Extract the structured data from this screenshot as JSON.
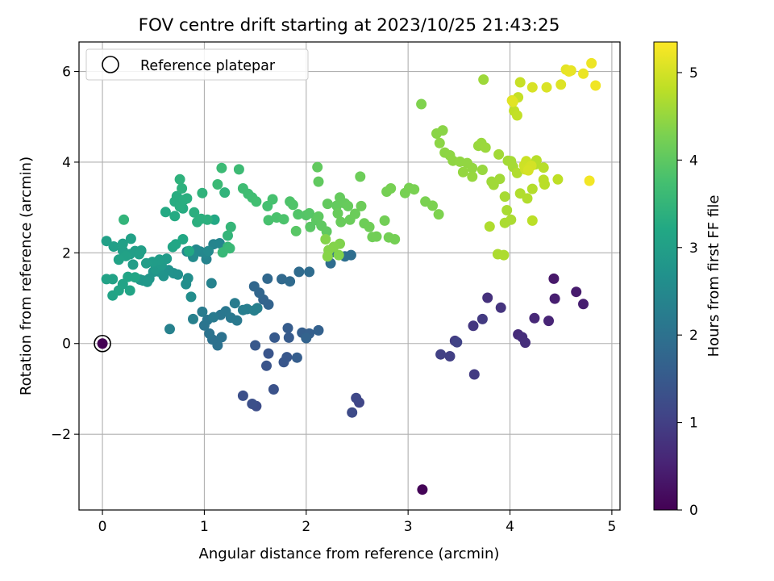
{
  "chart_data": {
    "type": "scatter",
    "title": "FOV centre drift starting at 2023/10/25 21:43:25",
    "xlabel": "Angular distance from reference (arcmin)",
    "ylabel": "Rotation from reference (arcmin)",
    "xlim": [
      -0.23,
      5.08
    ],
    "ylim": [
      -3.67,
      6.65
    ],
    "xticks": [
      0,
      1,
      2,
      3,
      4,
      5
    ],
    "xtick_labels": [
      "0",
      "1",
      "2",
      "3",
      "4",
      "5"
    ],
    "yticks": [
      -2,
      0,
      2,
      4,
      6
    ],
    "ytick_labels": [
      "−2",
      "0",
      "2",
      "4",
      "6"
    ],
    "grid": true,
    "legend": {
      "placement": "top-left",
      "entries": [
        "Reference platepar"
      ]
    },
    "reference_marker": {
      "x": 0,
      "y": 0
    },
    "colorbar": {
      "label": "Hours from first FF file",
      "min": 0,
      "max": 5.35,
      "ticks": [
        0,
        1,
        2,
        3,
        4,
        5
      ],
      "tick_labels": [
        "0",
        "1",
        "2",
        "3",
        "4",
        "5"
      ],
      "colormap": "viridis"
    },
    "points": [
      [
        3.14,
        -3.22,
        0.05
      ],
      [
        4.43,
        1.43,
        0.35
      ],
      [
        4.65,
        1.14,
        0.4
      ],
      [
        4.72,
        0.87,
        0.45
      ],
      [
        4.44,
        0.99,
        0.45
      ],
      [
        4.38,
        0.5,
        0.55
      ],
      [
        4.24,
        0.56,
        0.6
      ],
      [
        4.08,
        0.2,
        0.65
      ],
      [
        4.12,
        0.14,
        0.7
      ],
      [
        4.15,
        0.02,
        0.72
      ],
      [
        3.78,
        1.01,
        0.75
      ],
      [
        3.91,
        0.79,
        0.8
      ],
      [
        3.64,
        0.39,
        0.85
      ],
      [
        3.73,
        0.54,
        0.9
      ],
      [
        3.65,
        -0.68,
        0.92
      ],
      [
        3.46,
        0.06,
        0.95
      ],
      [
        3.41,
        -0.28,
        1.0
      ],
      [
        3.32,
        -0.24,
        1.02
      ],
      [
        3.48,
        0.03,
        1.05
      ],
      [
        2.52,
        -1.3,
        1.1
      ],
      [
        2.49,
        -1.2,
        1.15
      ],
      [
        2.45,
        -1.52,
        1.2
      ],
      [
        1.51,
        -1.38,
        1.25
      ],
      [
        1.47,
        -1.33,
        1.3
      ],
      [
        1.38,
        -1.15,
        1.3
      ],
      [
        1.68,
        -1.01,
        1.35
      ],
      [
        1.61,
        -0.49,
        1.38
      ],
      [
        1.63,
        -0.22,
        1.4
      ],
      [
        1.78,
        -0.41,
        1.42
      ],
      [
        1.81,
        -0.3,
        1.45
      ],
      [
        1.5,
        -0.04,
        1.48
      ],
      [
        1.69,
        0.13,
        1.5
      ],
      [
        1.83,
        0.13,
        1.52
      ],
      [
        1.82,
        0.34,
        1.55
      ],
      [
        1.91,
        -0.31,
        1.58
      ],
      [
        1.96,
        0.24,
        1.6
      ],
      [
        2.03,
        0.22,
        1.62
      ],
      [
        2.12,
        0.29,
        1.65
      ],
      [
        2.0,
        0.12,
        1.68
      ],
      [
        1.63,
        0.86,
        1.7
      ],
      [
        1.58,
        0.97,
        1.72
      ],
      [
        1.54,
        1.12,
        1.75
      ],
      [
        1.49,
        1.26,
        1.78
      ],
      [
        1.62,
        1.43,
        1.8
      ],
      [
        1.76,
        1.42,
        1.82
      ],
      [
        1.84,
        1.37,
        1.84
      ],
      [
        1.93,
        1.58,
        1.86
      ],
      [
        2.03,
        1.58,
        1.88
      ],
      [
        2.24,
        1.77,
        1.9
      ],
      [
        2.44,
        1.95,
        1.92
      ],
      [
        2.38,
        1.92,
        1.95
      ],
      [
        2.24,
        2.0,
        1.96
      ],
      [
        1.13,
        -0.04,
        1.98
      ],
      [
        1.08,
        0.09,
        2.0
      ],
      [
        1.17,
        0.14,
        2.02
      ],
      [
        1.05,
        0.22,
        2.04
      ],
      [
        1.0,
        0.4,
        2.05
      ],
      [
        1.03,
        0.52,
        2.08
      ],
      [
        1.16,
        0.63,
        2.1
      ],
      [
        1.21,
        0.71,
        2.12
      ],
      [
        1.26,
        0.57,
        2.14
      ],
      [
        1.32,
        0.51,
        2.16
      ],
      [
        1.09,
        0.58,
        2.18
      ],
      [
        0.98,
        0.7,
        2.2
      ],
      [
        1.3,
        0.89,
        2.22
      ],
      [
        1.42,
        0.76,
        2.24
      ],
      [
        1.38,
        0.74,
        2.26
      ],
      [
        1.49,
        0.73,
        2.28
      ],
      [
        1.52,
        0.78,
        2.3
      ],
      [
        0.89,
        0.54,
        2.32
      ],
      [
        0.66,
        0.32,
        2.34
      ],
      [
        1.07,
        1.33,
        2.35
      ],
      [
        1.02,
        1.86,
        2.38
      ],
      [
        1.09,
        2.19,
        2.4
      ],
      [
        1.15,
        2.21,
        2.42
      ],
      [
        1.01,
        1.98,
        2.44
      ],
      [
        0.96,
        2.03,
        2.46
      ],
      [
        0.83,
        2.03,
        2.48
      ],
      [
        0.92,
        2.07,
        2.5
      ],
      [
        1.04,
        2.04,
        2.52
      ],
      [
        0.89,
        1.91,
        2.55
      ],
      [
        0.87,
        1.03,
        2.58
      ],
      [
        0.82,
        1.31,
        2.6
      ],
      [
        0.84,
        1.44,
        2.62
      ],
      [
        0.74,
        1.52,
        2.65
      ],
      [
        0.7,
        1.55,
        2.68
      ],
      [
        0.65,
        1.62,
        2.7
      ],
      [
        0.6,
        1.49,
        2.72
      ],
      [
        0.55,
        1.59,
        2.74
      ],
      [
        0.5,
        1.58,
        2.76
      ],
      [
        0.46,
        1.43,
        2.78
      ],
      [
        0.4,
        1.39,
        2.8
      ],
      [
        0.37,
        1.41,
        2.82
      ],
      [
        0.44,
        1.36,
        2.84
      ],
      [
        0.52,
        1.64,
        2.86
      ],
      [
        0.58,
        1.73,
        2.88
      ],
      [
        0.63,
        1.87,
        2.9
      ],
      [
        0.56,
        1.85,
        2.92
      ],
      [
        0.49,
        1.8,
        2.94
      ],
      [
        0.43,
        1.77,
        2.95
      ],
      [
        0.3,
        1.74,
        2.96
      ],
      [
        0.27,
        1.97,
        2.97
      ],
      [
        0.32,
        2.04,
        2.98
      ],
      [
        0.36,
        1.97,
        2.99
      ],
      [
        0.38,
        2.05,
        3.0
      ],
      [
        0.2,
        2.05,
        3.0
      ],
      [
        0.11,
        2.14,
        3.01
      ],
      [
        0.04,
        2.26,
        3.02
      ],
      [
        0.2,
        2.2,
        3.03
      ],
      [
        0.28,
        2.31,
        3.04
      ],
      [
        0.23,
        1.93,
        3.05
      ],
      [
        0.16,
        1.85,
        3.06
      ],
      [
        0.04,
        1.42,
        3.07
      ],
      [
        0.1,
        1.42,
        3.08
      ],
      [
        0.2,
        1.31,
        3.09
      ],
      [
        0.1,
        1.06,
        3.1
      ],
      [
        0.16,
        1.17,
        3.11
      ],
      [
        0.27,
        1.17,
        3.12
      ],
      [
        0.25,
        1.47,
        3.13
      ],
      [
        0.32,
        1.46,
        3.14
      ],
      [
        0.69,
        2.13,
        3.15
      ],
      [
        0.72,
        2.19,
        3.16
      ],
      [
        0.79,
        2.3,
        3.18
      ],
      [
        0.85,
        2.04,
        3.2
      ],
      [
        1.1,
        2.73,
        3.22
      ],
      [
        0.62,
        2.9,
        3.24
      ],
      [
        0.71,
        2.81,
        3.26
      ],
      [
        0.79,
        2.98,
        3.28
      ],
      [
        0.71,
        3.13,
        3.3
      ],
      [
        0.73,
        3.25,
        3.31
      ],
      [
        0.76,
        3.02,
        3.32
      ],
      [
        0.8,
        3.17,
        3.33
      ],
      [
        0.83,
        3.2,
        3.34
      ],
      [
        0.9,
        2.89,
        3.35
      ],
      [
        0.93,
        2.68,
        3.36
      ],
      [
        0.97,
        2.75,
        3.37
      ],
      [
        1.03,
        2.73,
        3.38
      ],
      [
        0.78,
        3.42,
        3.4
      ],
      [
        0.76,
        3.62,
        3.42
      ],
      [
        0.98,
        3.32,
        3.44
      ],
      [
        1.2,
        3.33,
        3.46
      ],
      [
        0.21,
        2.73,
        3.48
      ],
      [
        1.23,
        2.38,
        3.5
      ],
      [
        1.26,
        2.57,
        3.52
      ],
      [
        1.23,
        2.13,
        3.54
      ],
      [
        1.18,
        2.01,
        3.56
      ],
      [
        1.25,
        2.1,
        3.58
      ],
      [
        1.13,
        3.51,
        3.6
      ],
      [
        1.17,
        3.87,
        3.62
      ],
      [
        1.34,
        3.84,
        3.64
      ],
      [
        1.38,
        3.42,
        3.66
      ],
      [
        1.43,
        3.3,
        3.68
      ],
      [
        1.47,
        3.22,
        3.7
      ],
      [
        1.51,
        3.13,
        3.72
      ],
      [
        1.62,
        3.03,
        3.74
      ],
      [
        1.67,
        3.18,
        3.76
      ],
      [
        1.63,
        2.72,
        3.78
      ],
      [
        1.71,
        2.78,
        3.8
      ],
      [
        1.78,
        2.74,
        3.82
      ],
      [
        1.84,
        3.13,
        3.84
      ],
      [
        1.87,
        3.06,
        3.86
      ],
      [
        1.92,
        2.85,
        3.88
      ],
      [
        2.0,
        2.83,
        3.9
      ],
      [
        2.03,
        2.87,
        3.92
      ],
      [
        1.9,
        2.48,
        3.94
      ],
      [
        2.04,
        2.57,
        3.96
      ],
      [
        2.1,
        2.72,
        3.98
      ],
      [
        2.12,
        2.8,
        4.0
      ],
      [
        2.15,
        2.6,
        4.01
      ],
      [
        2.2,
        2.47,
        4.02
      ],
      [
        2.12,
        3.57,
        4.03
      ],
      [
        2.11,
        3.89,
        4.04
      ],
      [
        2.21,
        3.08,
        4.05
      ],
      [
        2.3,
        3.04,
        4.06
      ],
      [
        2.33,
        3.22,
        4.07
      ],
      [
        2.38,
        3.09,
        4.08
      ],
      [
        2.41,
        3.03,
        4.09
      ],
      [
        2.31,
        2.87,
        4.1
      ],
      [
        2.34,
        2.68,
        4.11
      ],
      [
        2.43,
        2.73,
        4.12
      ],
      [
        2.48,
        2.86,
        4.13
      ],
      [
        2.54,
        3.03,
        4.14
      ],
      [
        2.53,
        3.68,
        4.15
      ],
      [
        2.57,
        2.65,
        4.16
      ],
      [
        2.62,
        2.57,
        4.17
      ],
      [
        2.65,
        2.35,
        4.18
      ],
      [
        2.69,
        2.36,
        4.19
      ],
      [
        2.77,
        2.71,
        4.2
      ],
      [
        2.81,
        2.34,
        4.21
      ],
      [
        2.87,
        2.3,
        4.22
      ],
      [
        2.79,
        3.35,
        4.23
      ],
      [
        2.83,
        3.42,
        4.24
      ],
      [
        2.97,
        3.32,
        4.25
      ],
      [
        3.01,
        3.43,
        4.26
      ],
      [
        3.06,
        3.4,
        4.27
      ],
      [
        3.17,
        3.13,
        4.28
      ],
      [
        3.24,
        3.04,
        4.29
      ],
      [
        3.3,
        2.85,
        4.3
      ],
      [
        3.13,
        5.28,
        4.32
      ],
      [
        2.33,
        2.2,
        4.33
      ],
      [
        2.32,
        1.95,
        4.34
      ],
      [
        2.27,
        2.13,
        4.35
      ],
      [
        2.19,
        2.3,
        4.36
      ],
      [
        2.22,
        2.06,
        4.37
      ],
      [
        2.21,
        1.92,
        4.38
      ],
      [
        3.28,
        4.63,
        4.4
      ],
      [
        3.34,
        4.7,
        4.41
      ],
      [
        3.31,
        4.42,
        4.42
      ],
      [
        3.36,
        4.21,
        4.43
      ],
      [
        3.41,
        4.15,
        4.44
      ],
      [
        3.44,
        4.03,
        4.45
      ],
      [
        3.51,
        4.01,
        4.46
      ],
      [
        3.58,
        3.98,
        4.47
      ],
      [
        3.63,
        3.87,
        4.48
      ],
      [
        3.54,
        3.78,
        4.49
      ],
      [
        3.63,
        3.68,
        4.5
      ],
      [
        3.73,
        3.83,
        4.51
      ],
      [
        3.69,
        4.36,
        4.52
      ],
      [
        3.72,
        4.42,
        4.53
      ],
      [
        3.76,
        4.32,
        4.54
      ],
      [
        3.74,
        5.82,
        4.56
      ],
      [
        3.82,
        3.57,
        4.57
      ],
      [
        3.84,
        3.5,
        4.58
      ],
      [
        3.9,
        3.63,
        4.59
      ],
      [
        3.89,
        4.17,
        4.6
      ],
      [
        3.98,
        4.03,
        4.61
      ],
      [
        4.01,
        4.02,
        4.62
      ],
      [
        4.03,
        3.9,
        4.63
      ],
      [
        3.95,
        3.24,
        4.64
      ],
      [
        3.97,
        2.94,
        4.65
      ],
      [
        3.95,
        2.66,
        4.66
      ],
      [
        4.01,
        2.73,
        4.67
      ],
      [
        3.88,
        1.97,
        4.68
      ],
      [
        3.94,
        1.95,
        4.69
      ],
      [
        3.8,
        2.58,
        4.7
      ],
      [
        4.07,
        3.76,
        4.71
      ],
      [
        4.1,
        3.31,
        4.72
      ],
      [
        4.17,
        3.2,
        4.73
      ],
      [
        4.22,
        3.41,
        4.74
      ],
      [
        4.25,
        3.95,
        4.75
      ],
      [
        4.26,
        4.04,
        4.76
      ],
      [
        4.33,
        3.88,
        4.77
      ],
      [
        4.34,
        3.51,
        4.78
      ],
      [
        4.33,
        3.61,
        4.79
      ],
      [
        4.22,
        2.71,
        4.8
      ],
      [
        4.47,
        3.62,
        4.82
      ],
      [
        4.04,
        5.13,
        4.84
      ],
      [
        4.07,
        5.03,
        4.86
      ],
      [
        4.08,
        5.43,
        4.88
      ],
      [
        4.1,
        5.76,
        4.9
      ],
      [
        4.16,
        4.02,
        4.92
      ],
      [
        4.14,
        3.93,
        4.94
      ],
      [
        4.15,
        3.84,
        4.96
      ],
      [
        4.18,
        3.87,
        4.98
      ],
      [
        4.21,
        3.92,
        5.0
      ],
      [
        4.18,
        3.82,
        5.02
      ],
      [
        4.22,
        5.65,
        5.04
      ],
      [
        4.36,
        5.65,
        5.06
      ],
      [
        4.5,
        5.71,
        5.08
      ],
      [
        4.02,
        5.36,
        5.1
      ],
      [
        4.03,
        5.33,
        5.12
      ],
      [
        4.55,
        6.04,
        5.14
      ],
      [
        4.6,
        6.02,
        5.16
      ],
      [
        4.58,
        6.0,
        5.18
      ],
      [
        4.72,
        5.95,
        5.2
      ],
      [
        4.8,
        6.18,
        5.22
      ],
      [
        4.84,
        5.69,
        5.24
      ],
      [
        4.78,
        3.59,
        5.26
      ]
    ]
  }
}
